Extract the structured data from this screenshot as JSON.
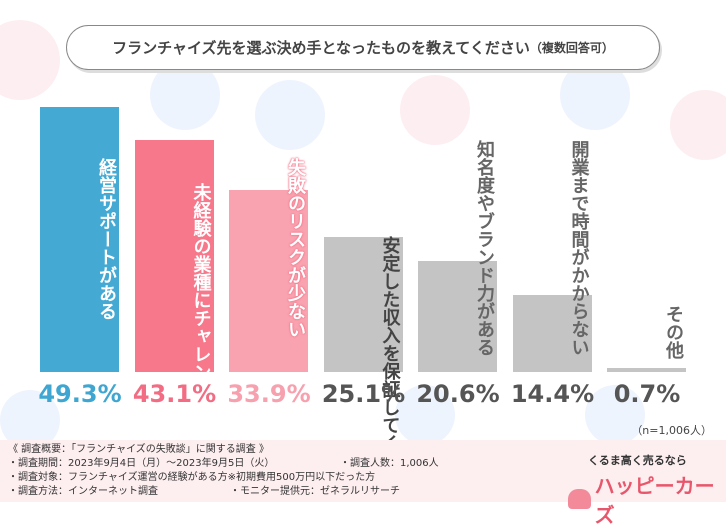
{
  "title": {
    "main": "フランチャイズ先を選ぶ決め手となったものを教えてください",
    "suffix": "（複数回答可）"
  },
  "chart_data": {
    "type": "bar",
    "title": "フランチャイズ先を選ぶ決め手となったものを教えてください（複数回答可）",
    "categories": [
      [
        "経営サポートがある"
      ],
      [
        "未経験の業種に",
        "チャレンジできる"
      ],
      [
        "失敗のリスクが少ない"
      ],
      [
        "安定した収入を",
        "保証してくれる"
      ],
      [
        "知名度やブランド力がある"
      ],
      [
        "開業まで時間がかからない"
      ],
      [
        "その他"
      ]
    ],
    "values": [
      49.3,
      43.1,
      33.9,
      25.1,
      20.6,
      14.4,
      0.7
    ],
    "value_labels": [
      "49.3%",
      "43.1%",
      "33.9%",
      "25.1%",
      "20.6%",
      "14.4%",
      "0.7%"
    ],
    "colors": [
      "#45aad3",
      "#f7788b",
      "#f9a3b0",
      "#c4c4c4",
      "#c4c4c4",
      "#c4c4c4",
      "#c4c4c4"
    ],
    "value_colors": [
      "#3ea6d0",
      "#f26d83",
      "#f7a0ae",
      "#555555",
      "#555555",
      "#555555",
      "#555555"
    ],
    "ylim": [
      0,
      50
    ],
    "grid": false
  },
  "sample": "（n=1,006人）",
  "footer": {
    "heading": "《 調査概要：「フランチャイズの失敗談」に関する調査 》",
    "period": "・調査期間：2023年9月4日（月）～2023年9月5日（火）",
    "count": "・調査人数：1,006人",
    "method": "・調査方法：インターネット調査",
    "target": "・調査対象：フランチャイズ運営の経験がある方※初期費用500万円以下だった方",
    "provider": "・モニター提供元：ゼネラルリサーチ"
  },
  "logo": {
    "tagline": "くるま高く売るなら",
    "name": "ハッピーカーズ"
  }
}
